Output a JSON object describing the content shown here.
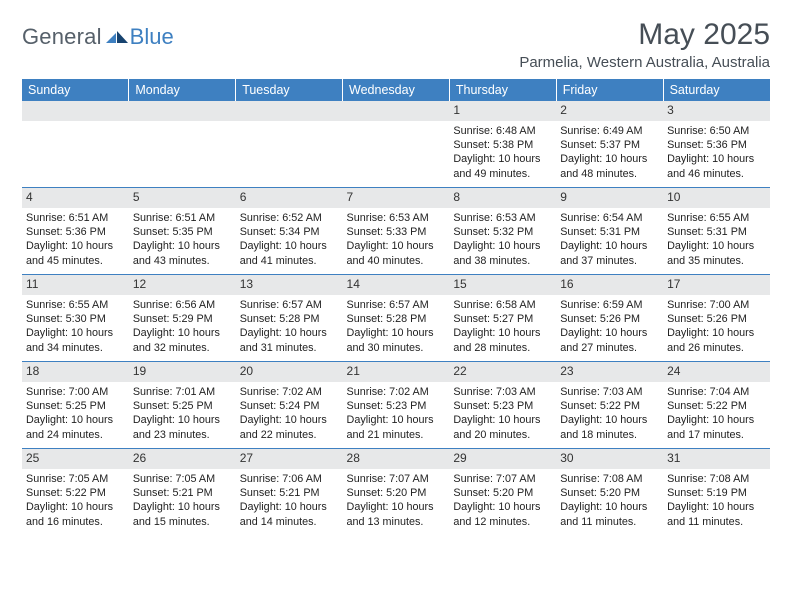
{
  "logo": {
    "general": "General",
    "blue": "Blue"
  },
  "title": {
    "month": "May 2025",
    "location": "Parmelia, Western Australia, Australia"
  },
  "colors": {
    "accent": "#3e80c1",
    "strip": "#e7e8e9",
    "text": "#222222",
    "header_text": "#464e56"
  },
  "day_headers": [
    "Sunday",
    "Monday",
    "Tuesday",
    "Wednesday",
    "Thursday",
    "Friday",
    "Saturday"
  ],
  "weeks": [
    [
      {
        "empty": true
      },
      {
        "empty": true
      },
      {
        "empty": true
      },
      {
        "empty": true
      },
      {
        "date": "1",
        "sunrise": "Sunrise: 6:48 AM",
        "sunset": "Sunset: 5:38 PM",
        "daylight1": "Daylight: 10 hours",
        "daylight2": "and 49 minutes."
      },
      {
        "date": "2",
        "sunrise": "Sunrise: 6:49 AM",
        "sunset": "Sunset: 5:37 PM",
        "daylight1": "Daylight: 10 hours",
        "daylight2": "and 48 minutes."
      },
      {
        "date": "3",
        "sunrise": "Sunrise: 6:50 AM",
        "sunset": "Sunset: 5:36 PM",
        "daylight1": "Daylight: 10 hours",
        "daylight2": "and 46 minutes."
      }
    ],
    [
      {
        "date": "4",
        "sunrise": "Sunrise: 6:51 AM",
        "sunset": "Sunset: 5:36 PM",
        "daylight1": "Daylight: 10 hours",
        "daylight2": "and 45 minutes."
      },
      {
        "date": "5",
        "sunrise": "Sunrise: 6:51 AM",
        "sunset": "Sunset: 5:35 PM",
        "daylight1": "Daylight: 10 hours",
        "daylight2": "and 43 minutes."
      },
      {
        "date": "6",
        "sunrise": "Sunrise: 6:52 AM",
        "sunset": "Sunset: 5:34 PM",
        "daylight1": "Daylight: 10 hours",
        "daylight2": "and 41 minutes."
      },
      {
        "date": "7",
        "sunrise": "Sunrise: 6:53 AM",
        "sunset": "Sunset: 5:33 PM",
        "daylight1": "Daylight: 10 hours",
        "daylight2": "and 40 minutes."
      },
      {
        "date": "8",
        "sunrise": "Sunrise: 6:53 AM",
        "sunset": "Sunset: 5:32 PM",
        "daylight1": "Daylight: 10 hours",
        "daylight2": "and 38 minutes."
      },
      {
        "date": "9",
        "sunrise": "Sunrise: 6:54 AM",
        "sunset": "Sunset: 5:31 PM",
        "daylight1": "Daylight: 10 hours",
        "daylight2": "and 37 minutes."
      },
      {
        "date": "10",
        "sunrise": "Sunrise: 6:55 AM",
        "sunset": "Sunset: 5:31 PM",
        "daylight1": "Daylight: 10 hours",
        "daylight2": "and 35 minutes."
      }
    ],
    [
      {
        "date": "11",
        "sunrise": "Sunrise: 6:55 AM",
        "sunset": "Sunset: 5:30 PM",
        "daylight1": "Daylight: 10 hours",
        "daylight2": "and 34 minutes."
      },
      {
        "date": "12",
        "sunrise": "Sunrise: 6:56 AM",
        "sunset": "Sunset: 5:29 PM",
        "daylight1": "Daylight: 10 hours",
        "daylight2": "and 32 minutes."
      },
      {
        "date": "13",
        "sunrise": "Sunrise: 6:57 AM",
        "sunset": "Sunset: 5:28 PM",
        "daylight1": "Daylight: 10 hours",
        "daylight2": "and 31 minutes."
      },
      {
        "date": "14",
        "sunrise": "Sunrise: 6:57 AM",
        "sunset": "Sunset: 5:28 PM",
        "daylight1": "Daylight: 10 hours",
        "daylight2": "and 30 minutes."
      },
      {
        "date": "15",
        "sunrise": "Sunrise: 6:58 AM",
        "sunset": "Sunset: 5:27 PM",
        "daylight1": "Daylight: 10 hours",
        "daylight2": "and 28 minutes."
      },
      {
        "date": "16",
        "sunrise": "Sunrise: 6:59 AM",
        "sunset": "Sunset: 5:26 PM",
        "daylight1": "Daylight: 10 hours",
        "daylight2": "and 27 minutes."
      },
      {
        "date": "17",
        "sunrise": "Sunrise: 7:00 AM",
        "sunset": "Sunset: 5:26 PM",
        "daylight1": "Daylight: 10 hours",
        "daylight2": "and 26 minutes."
      }
    ],
    [
      {
        "date": "18",
        "sunrise": "Sunrise: 7:00 AM",
        "sunset": "Sunset: 5:25 PM",
        "daylight1": "Daylight: 10 hours",
        "daylight2": "and 24 minutes."
      },
      {
        "date": "19",
        "sunrise": "Sunrise: 7:01 AM",
        "sunset": "Sunset: 5:25 PM",
        "daylight1": "Daylight: 10 hours",
        "daylight2": "and 23 minutes."
      },
      {
        "date": "20",
        "sunrise": "Sunrise: 7:02 AM",
        "sunset": "Sunset: 5:24 PM",
        "daylight1": "Daylight: 10 hours",
        "daylight2": "and 22 minutes."
      },
      {
        "date": "21",
        "sunrise": "Sunrise: 7:02 AM",
        "sunset": "Sunset: 5:23 PM",
        "daylight1": "Daylight: 10 hours",
        "daylight2": "and 21 minutes."
      },
      {
        "date": "22",
        "sunrise": "Sunrise: 7:03 AM",
        "sunset": "Sunset: 5:23 PM",
        "daylight1": "Daylight: 10 hours",
        "daylight2": "and 20 minutes."
      },
      {
        "date": "23",
        "sunrise": "Sunrise: 7:03 AM",
        "sunset": "Sunset: 5:22 PM",
        "daylight1": "Daylight: 10 hours",
        "daylight2": "and 18 minutes."
      },
      {
        "date": "24",
        "sunrise": "Sunrise: 7:04 AM",
        "sunset": "Sunset: 5:22 PM",
        "daylight1": "Daylight: 10 hours",
        "daylight2": "and 17 minutes."
      }
    ],
    [
      {
        "date": "25",
        "sunrise": "Sunrise: 7:05 AM",
        "sunset": "Sunset: 5:22 PM",
        "daylight1": "Daylight: 10 hours",
        "daylight2": "and 16 minutes."
      },
      {
        "date": "26",
        "sunrise": "Sunrise: 7:05 AM",
        "sunset": "Sunset: 5:21 PM",
        "daylight1": "Daylight: 10 hours",
        "daylight2": "and 15 minutes."
      },
      {
        "date": "27",
        "sunrise": "Sunrise: 7:06 AM",
        "sunset": "Sunset: 5:21 PM",
        "daylight1": "Daylight: 10 hours",
        "daylight2": "and 14 minutes."
      },
      {
        "date": "28",
        "sunrise": "Sunrise: 7:07 AM",
        "sunset": "Sunset: 5:20 PM",
        "daylight1": "Daylight: 10 hours",
        "daylight2": "and 13 minutes."
      },
      {
        "date": "29",
        "sunrise": "Sunrise: 7:07 AM",
        "sunset": "Sunset: 5:20 PM",
        "daylight1": "Daylight: 10 hours",
        "daylight2": "and 12 minutes."
      },
      {
        "date": "30",
        "sunrise": "Sunrise: 7:08 AM",
        "sunset": "Sunset: 5:20 PM",
        "daylight1": "Daylight: 10 hours",
        "daylight2": "and 11 minutes."
      },
      {
        "date": "31",
        "sunrise": "Sunrise: 7:08 AM",
        "sunset": "Sunset: 5:19 PM",
        "daylight1": "Daylight: 10 hours",
        "daylight2": "and 11 minutes."
      }
    ]
  ]
}
